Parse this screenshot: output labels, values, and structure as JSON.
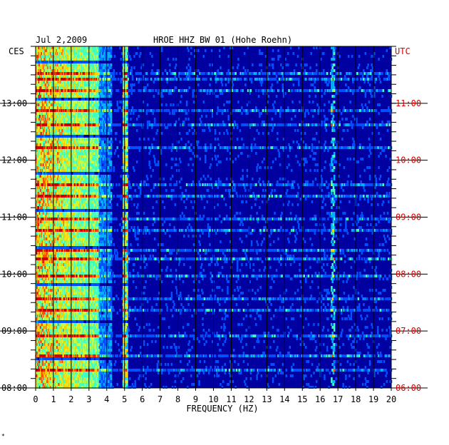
{
  "header": {
    "date": "Jul 2,2009",
    "station": "HROE HHZ BW 01 (Hohe Roehn)"
  },
  "chart_data": {
    "type": "heatmap",
    "title": "HROE HHZ BW 01 (Hohe Roehn)",
    "date": "Jul 2,2009",
    "xlabel": "FREQUENCY (HZ)",
    "xlim": [
      0,
      20
    ],
    "x_ticks": [
      "0",
      "1",
      "2",
      "3",
      "4",
      "5",
      "6",
      "7",
      "8",
      "9",
      "10",
      "11",
      "12",
      "13",
      "14",
      "15",
      "16",
      "17",
      "18",
      "19",
      "20"
    ],
    "left_axis": {
      "label": "CES",
      "ticks": [
        "13:00",
        "12:00",
        "11:00",
        "10:00",
        "09:00",
        "08:00"
      ],
      "values": [
        13,
        12,
        11,
        10,
        9,
        8
      ],
      "range": [
        8,
        14
      ]
    },
    "right_axis": {
      "label": "UTC",
      "ticks": [
        "11:00",
        "10:00",
        "09:00",
        "08:00",
        "07:00",
        "06:00"
      ],
      "values": [
        11,
        10,
        9,
        8,
        7,
        6
      ],
      "color": "#dd0000"
    },
    "colormap": [
      "#00008b",
      "#0000cd",
      "#0050ff",
      "#00b4ff",
      "#40ffc0",
      "#c8ff40",
      "#ffd000",
      "#ff5000",
      "#cc0000"
    ],
    "background_color": "#0000a0",
    "grid": true,
    "notable_features": [
      {
        "description": "persistent spectral line",
        "frequency_hz": 5.0
      },
      {
        "description": "high energy band",
        "frequency_range_hz": [
          0,
          3.5
        ]
      },
      {
        "description": "intermittent spectral line",
        "frequency_hz": 16.7
      }
    ]
  },
  "footer": {
    "mark": "*"
  }
}
